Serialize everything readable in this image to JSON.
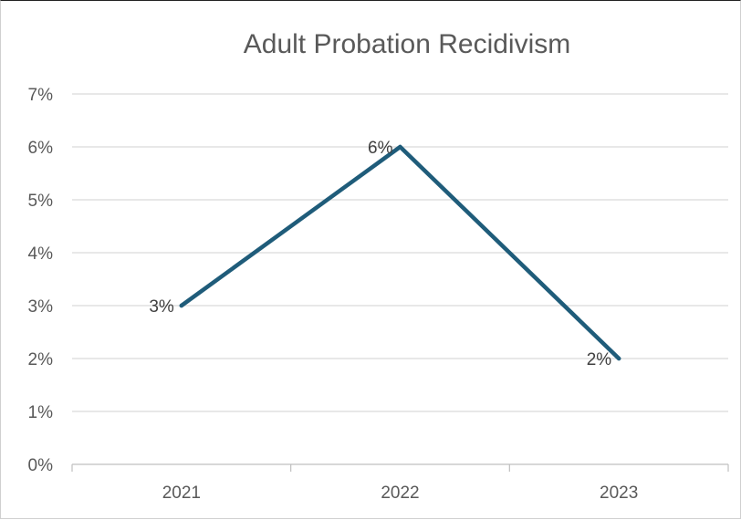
{
  "chart_data": {
    "type": "line",
    "title": "Adult Probation Recidivism",
    "xlabel": "",
    "ylabel": "",
    "categories": [
      "2021",
      "2022",
      "2023"
    ],
    "series": [
      {
        "values": [
          3,
          6,
          2
        ],
        "data_labels": [
          "3%",
          "6%",
          "2%"
        ],
        "color": "#1f5c7a"
      }
    ],
    "ylim": [
      0,
      7
    ],
    "y_ticks": [
      "0%",
      "1%",
      "2%",
      "3%",
      "4%",
      "5%",
      "6%",
      "7%"
    ],
    "grid": true,
    "legend": "none",
    "gridline_color": "#d9d9d9",
    "axis_color": "#bfbfbf"
  }
}
